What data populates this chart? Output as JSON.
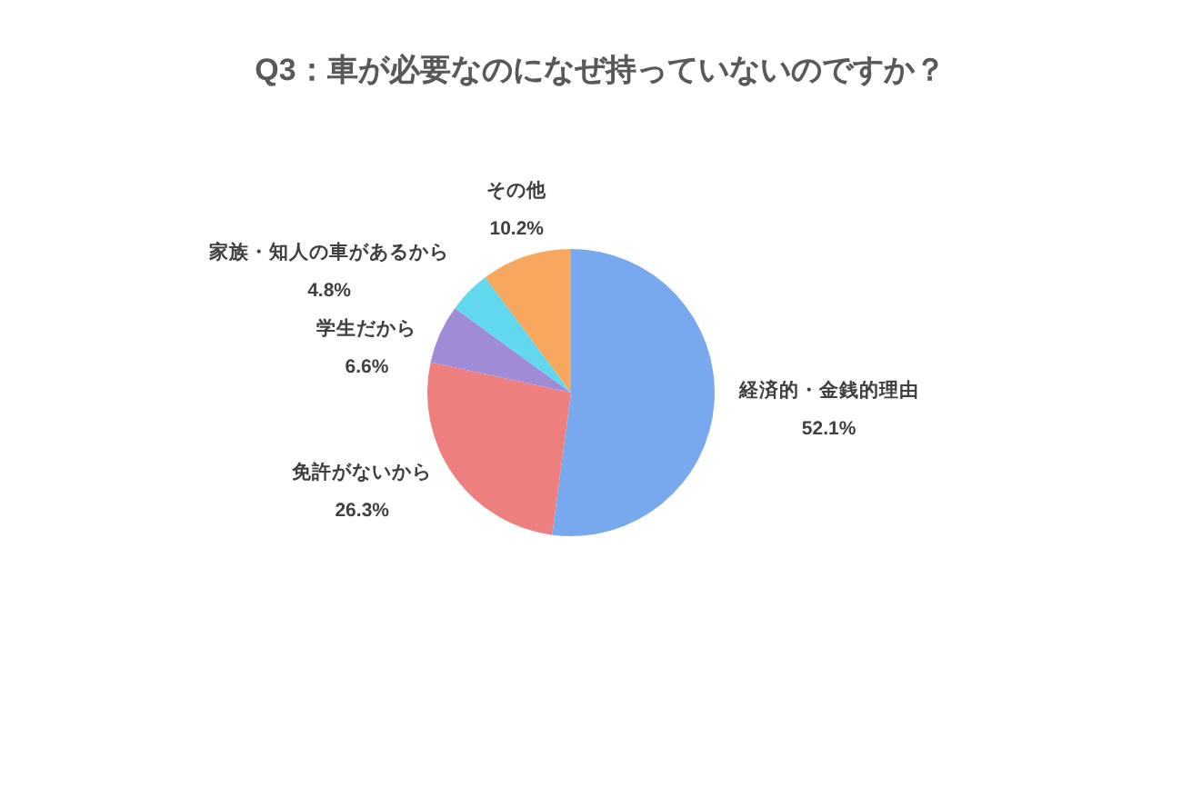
{
  "chart_data": {
    "type": "pie",
    "title": "Q3：車が必要なのになぜ持っていないのですか？",
    "categories": [
      "経済的・金銭的理由",
      "免許がないから",
      "学生だから",
      "家族・知人の車があるから",
      "その他"
    ],
    "values": [
      52.1,
      26.3,
      6.6,
      4.8,
      10.2
    ],
    "colors": [
      "#78a8ee",
      "#ee7f7f",
      "#a08bd6",
      "#62d8ee",
      "#f8a75f"
    ],
    "value_labels": [
      "52.1%",
      "26.3%",
      "6.6%",
      "4.8%",
      "10.2%"
    ]
  }
}
